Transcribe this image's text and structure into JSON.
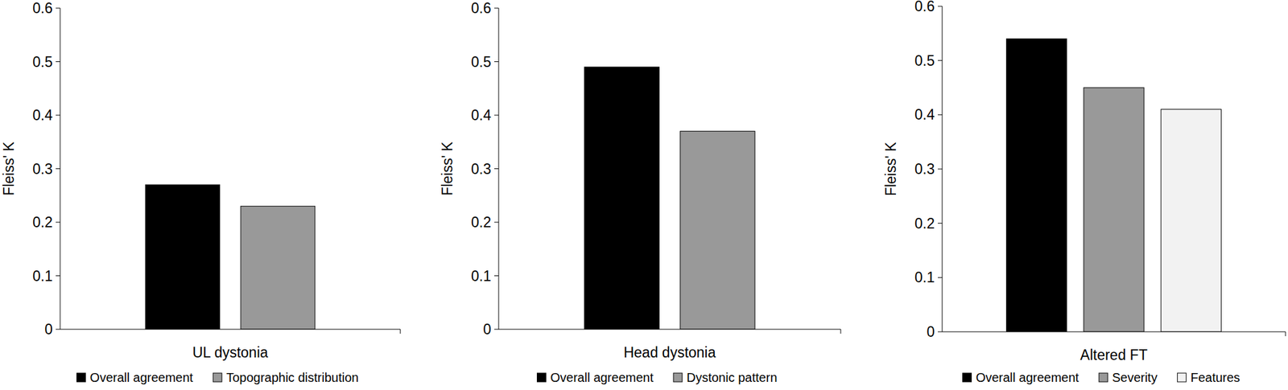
{
  "chart_data": [
    {
      "type": "bar",
      "categories": [
        "UL dystonia"
      ],
      "y_label": "Fleiss' K",
      "series": [
        {
          "name": "Overall agreement",
          "color": "#000000",
          "values": [
            0.27
          ]
        },
        {
          "name": "Topographic distribution",
          "color": "#999999",
          "values": [
            0.23
          ]
        }
      ],
      "ylim": [
        0,
        0.6
      ],
      "yticks": [
        0,
        0.1,
        0.2,
        0.3,
        0.4,
        0.5,
        0.6
      ],
      "legend": "bottom"
    },
    {
      "type": "bar",
      "categories": [
        "Head dystonia"
      ],
      "y_label": "Fleiss' K",
      "series": [
        {
          "name": "Overall agreement",
          "color": "#000000",
          "values": [
            0.49
          ]
        },
        {
          "name": "Dystonic pattern",
          "color": "#999999",
          "values": [
            0.37
          ]
        }
      ],
      "ylim": [
        0,
        0.6
      ],
      "yticks": [
        0,
        0.1,
        0.2,
        0.3,
        0.4,
        0.5,
        0.6
      ],
      "legend": "bottom"
    },
    {
      "type": "bar",
      "categories": [
        "Altered FT"
      ],
      "y_label": "Fleiss' K",
      "series": [
        {
          "name": "Overall agreement",
          "color": "#000000",
          "values": [
            0.54
          ]
        },
        {
          "name": "Severity",
          "color": "#999999",
          "values": [
            0.45
          ]
        },
        {
          "name": "Features",
          "color": "#f2f2f2",
          "values": [
            0.41
          ]
        }
      ],
      "ylim": [
        0,
        0.6
      ],
      "yticks": [
        0,
        0.1,
        0.2,
        0.3,
        0.4,
        0.5,
        0.6
      ],
      "legend": "bottom"
    }
  ]
}
